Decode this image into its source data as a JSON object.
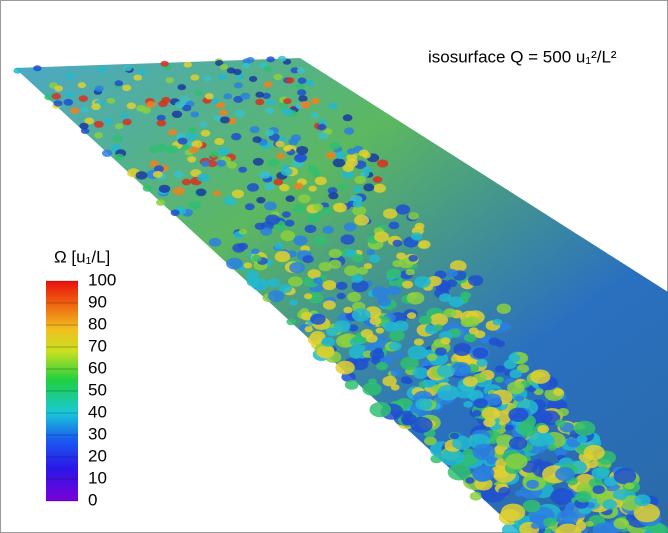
{
  "annotation": "isosurface Q = 500 u₁²/L²",
  "colorbar": {
    "title": "Ω [u₁/L]",
    "ticks": [
      0,
      10,
      20,
      30,
      40,
      50,
      60,
      70,
      80,
      90,
      100
    ]
  }
}
